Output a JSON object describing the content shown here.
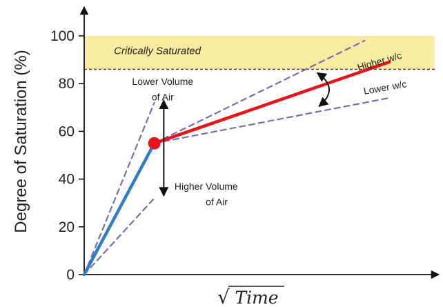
{
  "chart_data": {
    "type": "line",
    "ylabel": "Degree of Saturation (%)",
    "xlabel": "Time",
    "xlabel_prefix": "√",
    "ylim": [
      0,
      100
    ],
    "y_ticks": [
      0,
      20,
      40,
      60,
      80,
      100
    ],
    "x_ticks": [],
    "grid": false,
    "band": {
      "from": 86,
      "to": 100,
      "label": "Critically Saturated",
      "color": "#f9eca0"
    },
    "threshold": 86,
    "critical_point": {
      "x": 0.2,
      "y": 55,
      "color": "#e8141a"
    },
    "series": [
      {
        "values": [
          [
            0,
            0
          ],
          [
            0.2,
            55
          ]
        ],
        "color": "#2f7dc4",
        "style": "solid"
      },
      {
        "values": [
          [
            0.2,
            55
          ],
          [
            0.87,
            89
          ]
        ],
        "color": "#e8141a",
        "style": "solid"
      },
      {
        "values": [
          [
            0,
            0
          ],
          [
            0.2,
            72
          ]
        ],
        "color": "#7a6cb4",
        "style": "dashed"
      },
      {
        "values": [
          [
            0,
            0
          ],
          [
            0.2,
            32
          ]
        ],
        "color": "#7a6cb4",
        "style": "dashed"
      },
      {
        "values": [
          [
            0.2,
            55
          ],
          [
            0.8,
            98
          ]
        ],
        "color": "#7a6cb4",
        "style": "dashed"
      },
      {
        "values": [
          [
            0.2,
            55
          ],
          [
            0.87,
            74
          ]
        ],
        "color": "#7a6cb4",
        "style": "dashed"
      }
    ],
    "annotations": [
      {
        "lines": [
          "Lower Volume",
          "of Air"
        ]
      },
      {
        "lines": [
          "Higher Volume",
          "of Air"
        ]
      },
      {
        "lines": [
          "Higher w/c"
        ]
      },
      {
        "lines": [
          "Lower w/c"
        ]
      }
    ]
  }
}
